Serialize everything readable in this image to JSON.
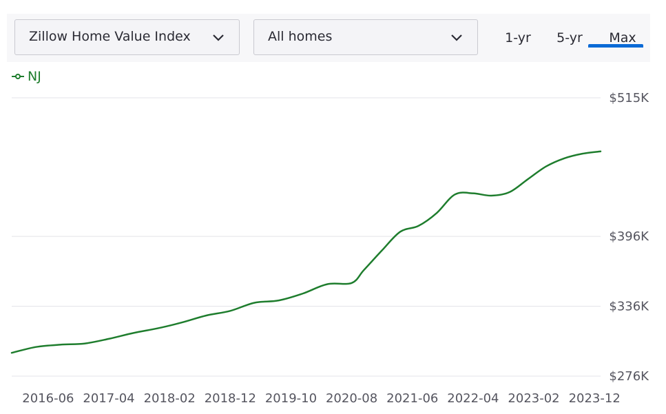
{
  "controls": {
    "metric_label": "Zillow Home Value Index",
    "home_type_label": "All homes",
    "ranges": [
      "1-yr",
      "5-yr",
      "Max"
    ],
    "selected_range": "Max",
    "accent_color": "#0a6ad6"
  },
  "chart_data": {
    "type": "line",
    "title": "",
    "xlabel": "",
    "ylabel": "",
    "y_tick_labels": [
      "$515K",
      "$396K",
      "$336K",
      "$276K"
    ],
    "y_ticks": [
      515,
      396,
      336,
      276
    ],
    "ylim": [
      276,
      515
    ],
    "x_tick_labels": [
      "2016-06",
      "2017-04",
      "2018-02",
      "2018-12",
      "2019-10",
      "2020-08",
      "2021-06",
      "2022-04",
      "2023-02",
      "2023-12"
    ],
    "x_ticks": [
      "2016-06",
      "2017-04",
      "2018-02",
      "2018-12",
      "2019-10",
      "2020-08",
      "2021-06",
      "2022-04",
      "2023-02",
      "2023-12"
    ],
    "xlim": [
      "2015-12",
      "2024-01"
    ],
    "grid": true,
    "legend_position": "top-left",
    "series": [
      {
        "name": "NJ",
        "color": "#1e7d2d",
        "x": [
          "2015-12",
          "2016-04",
          "2016-08",
          "2016-12",
          "2017-04",
          "2017-08",
          "2017-12",
          "2018-04",
          "2018-08",
          "2018-12",
          "2019-04",
          "2019-08",
          "2019-12",
          "2020-04",
          "2020-08",
          "2020-10",
          "2021-01",
          "2021-04",
          "2021-07",
          "2021-10",
          "2022-01",
          "2022-04",
          "2022-07",
          "2022-10",
          "2023-01",
          "2023-04",
          "2023-07",
          "2023-10",
          "2024-01"
        ],
        "y": [
          296,
          301,
          303,
          304,
          308,
          313,
          317,
          322,
          328,
          332,
          339,
          341,
          347,
          355,
          356,
          367,
          384,
          400,
          405,
          416,
          432,
          433,
          431,
          434,
          445,
          456,
          463,
          467,
          469
        ]
      }
    ]
  }
}
